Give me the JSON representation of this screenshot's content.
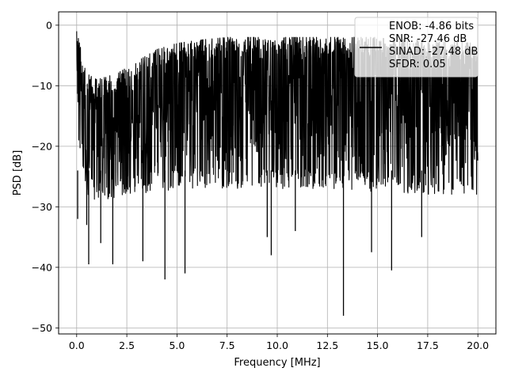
{
  "chart_data": {
    "type": "line",
    "title": "",
    "xlabel": "Frequency [MHz]",
    "ylabel": "PSD [dB]",
    "xlim": [
      -0.9,
      20.9
    ],
    "ylim": [
      -51.0,
      2.2
    ],
    "xticks": [
      0.0,
      2.5,
      5.0,
      7.5,
      10.0,
      12.5,
      15.0,
      17.5,
      20.0
    ],
    "xtick_labels": [
      "0.0",
      "2.5",
      "5.0",
      "7.5",
      "10.0",
      "12.5",
      "15.0",
      "17.5",
      "20.0"
    ],
    "yticks": [
      0,
      -10,
      -20,
      -30,
      -40,
      -50
    ],
    "ytick_labels": [
      "0",
      "−10",
      "−20",
      "−30",
      "−40",
      "−50"
    ],
    "grid": true,
    "legend": {
      "placement": "top-right",
      "entries": [
        "ENOB: -4.86 bits",
        "SNR: -27.46 dB",
        "SINAD: -27.48 dB",
        "SFDR: 0.05"
      ]
    },
    "series": [
      {
        "color": "#000000",
        "style": "noise-floor trace, dense",
        "x_range": [
          0.0,
          20.0
        ],
        "envelope": {
          "x": [
            0.0,
            0.5,
            1.0,
            2.0,
            3.0,
            4.0,
            5.0,
            6.0,
            7.5,
            10.0,
            12.5,
            15.0,
            17.5,
            20.0
          ],
          "upper": [
            -1.0,
            -8.0,
            -9.0,
            -8.0,
            -6.0,
            -4.0,
            -3.0,
            -2.5,
            -2.0,
            -2.0,
            -2.0,
            -2.0,
            -2.5,
            -3.0
          ],
          "lower": [
            -17.0,
            -28.0,
            -29.0,
            -28.5,
            -28.0,
            -27.5,
            -27.5,
            -27.0,
            -27.0,
            -27.0,
            -27.0,
            -27.5,
            -28.0,
            -28.0
          ]
        },
        "notable_dips": [
          {
            "x": 0.05,
            "y": -32.0
          },
          {
            "x": 0.5,
            "y": -33.0
          },
          {
            "x": 0.6,
            "y": -39.5
          },
          {
            "x": 1.2,
            "y": -36.0
          },
          {
            "x": 1.8,
            "y": -39.5
          },
          {
            "x": 3.3,
            "y": -39.0
          },
          {
            "x": 4.4,
            "y": -42.0
          },
          {
            "x": 5.4,
            "y": -41.0
          },
          {
            "x": 9.5,
            "y": -35.0
          },
          {
            "x": 9.7,
            "y": -38.0
          },
          {
            "x": 10.9,
            "y": -34.0
          },
          {
            "x": 13.3,
            "y": -48.0
          },
          {
            "x": 14.7,
            "y": -37.5
          },
          {
            "x": 15.7,
            "y": -40.5
          },
          {
            "x": 17.2,
            "y": -35.0
          }
        ]
      }
    ]
  }
}
